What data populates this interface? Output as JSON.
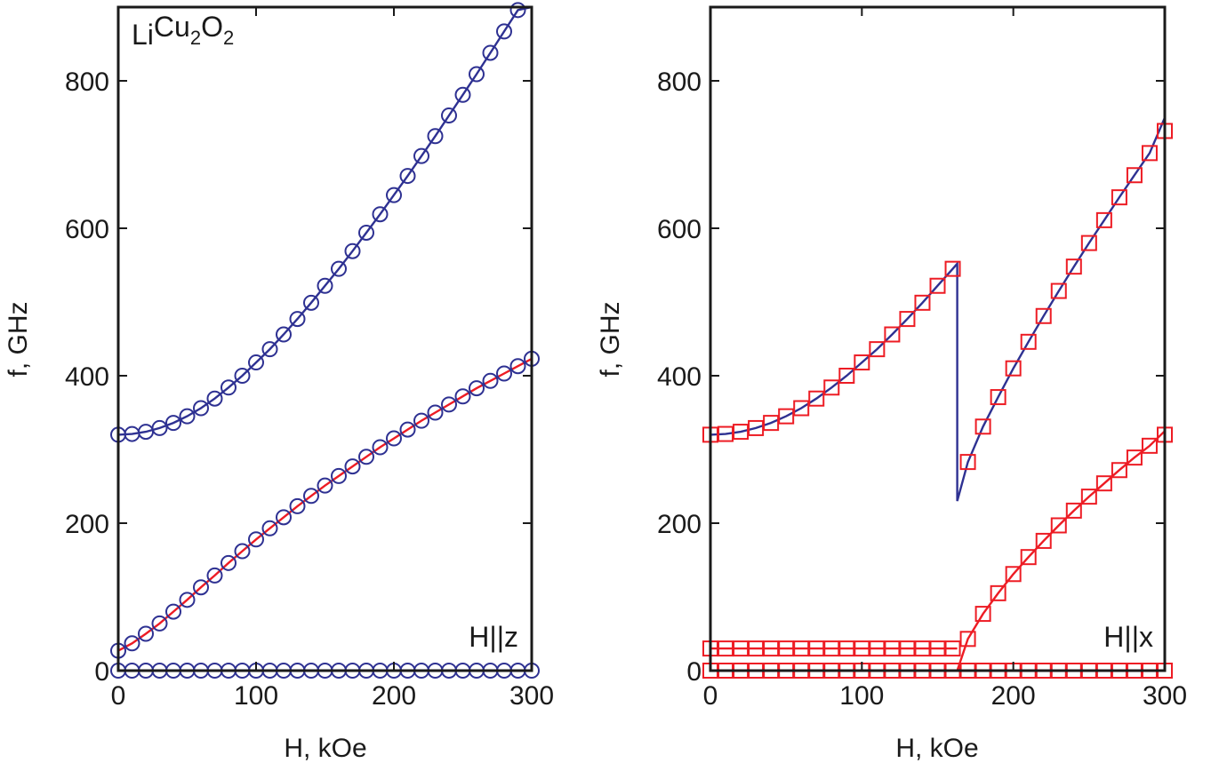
{
  "chart_data": [
    {
      "type": "scatter",
      "title": "",
      "xlabel": "H, kOe",
      "ylabel": "f, GHz",
      "xlim": [
        0,
        300
      ],
      "ylim": [
        0,
        900
      ],
      "xticks": [
        0,
        100,
        200,
        300
      ],
      "yticks": [
        0,
        200,
        400,
        600,
        800
      ],
      "grid": false,
      "legend": "none",
      "annotations": [
        {
          "text": "LiCu2O2",
          "position": "top-left",
          "parts": [
            [
              "Li",
              ""
            ],
            [
              "Cu",
              ""
            ],
            [
              "2",
              "sub"
            ],
            [
              "O",
              ""
            ],
            [
              "2",
              "sub"
            ]
          ]
        },
        {
          "text": "H||z",
          "position": "bottom-right"
        }
      ],
      "series": [
        {
          "marker": "circle",
          "color": "#2e3192",
          "x": [
            0,
            10,
            20,
            30,
            40,
            50,
            60,
            70,
            80,
            90,
            100,
            110,
            120,
            130,
            140,
            150,
            160,
            170,
            180,
            190,
            200,
            210,
            220,
            230,
            240,
            250,
            260,
            270,
            280,
            290,
            300
          ],
          "y": [
            320,
            321,
            324,
            329,
            336,
            345,
            356,
            369,
            384,
            400,
            418,
            436,
            456,
            477,
            499,
            522,
            545,
            569,
            594,
            619,
            645,
            671,
            698,
            725,
            753,
            781,
            809,
            838,
            867,
            896,
            925
          ]
        },
        {
          "marker": "circle",
          "color": "#2e3192",
          "x": [
            0,
            10,
            20,
            30,
            40,
            50,
            60,
            70,
            80,
            90,
            100,
            110,
            120,
            130,
            140,
            150,
            160,
            170,
            180,
            190,
            200,
            210,
            220,
            230,
            240,
            250,
            260,
            270,
            280,
            290,
            300
          ],
          "y": [
            27,
            37,
            50,
            64,
            80,
            96,
            113,
            129,
            146,
            162,
            178,
            193,
            208,
            223,
            237,
            251,
            264,
            277,
            290,
            303,
            315,
            327,
            339,
            350,
            361,
            372,
            383,
            393,
            403,
            413,
            423
          ]
        },
        {
          "marker": "circle",
          "color": "#2e3192",
          "x": [
            0,
            10,
            20,
            30,
            40,
            50,
            60,
            70,
            80,
            90,
            100,
            110,
            120,
            130,
            140,
            150,
            160,
            170,
            180,
            190,
            200,
            210,
            220,
            230,
            240,
            250,
            260,
            270,
            280,
            290,
            300
          ],
          "y": [
            0,
            0,
            0,
            0,
            0,
            0,
            0,
            0,
            0,
            0,
            0,
            0,
            0,
            0,
            0,
            0,
            0,
            0,
            0,
            0,
            0,
            0,
            0,
            0,
            0,
            0,
            0,
            0,
            0,
            0,
            0
          ]
        },
        {
          "marker": "line",
          "color": "#2e3192",
          "x": [
            0,
            10,
            20,
            30,
            40,
            50,
            60,
            70,
            80,
            90,
            100,
            110,
            120,
            130,
            140,
            150,
            160,
            170,
            180,
            190,
            200,
            210,
            220,
            230,
            240,
            250,
            260,
            270,
            280,
            290,
            300
          ],
          "y": [
            320,
            321,
            324,
            329,
            336,
            345,
            356,
            369,
            384,
            400,
            418,
            436,
            456,
            477,
            499,
            522,
            545,
            569,
            594,
            619,
            645,
            671,
            698,
            725,
            753,
            781,
            809,
            838,
            867,
            896,
            925
          ]
        },
        {
          "marker": "line",
          "color": "#ed1c24",
          "x": [
            0,
            10,
            20,
            30,
            40,
            50,
            60,
            70,
            80,
            90,
            100,
            110,
            120,
            130,
            140,
            150,
            160,
            170,
            180,
            190,
            200,
            210,
            220,
            230,
            240,
            250,
            260,
            270,
            280,
            290,
            300
          ],
          "y": [
            27,
            37,
            50,
            64,
            80,
            96,
            113,
            129,
            146,
            162,
            178,
            193,
            208,
            223,
            237,
            251,
            264,
            277,
            290,
            303,
            315,
            327,
            339,
            350,
            361,
            372,
            383,
            393,
            403,
            413,
            423
          ]
        }
      ]
    },
    {
      "type": "scatter",
      "title": "",
      "xlabel": "H, kOe",
      "ylabel": "f, GHz",
      "xlim": [
        0,
        300
      ],
      "ylim": [
        0,
        900
      ],
      "xticks": [
        0,
        100,
        200,
        300
      ],
      "yticks": [
        0,
        200,
        400,
        600,
        800
      ],
      "grid": false,
      "legend": "none",
      "annotations": [
        {
          "text": "H||x",
          "position": "bottom-right"
        }
      ],
      "series": [
        {
          "marker": "square",
          "color": "#ed1c24",
          "x": [
            0,
            10,
            20,
            30,
            40,
            50,
            60,
            70,
            80,
            90,
            100,
            110,
            120,
            130,
            140,
            150,
            160
          ],
          "y": [
            320,
            321,
            324,
            329,
            336,
            345,
            356,
            369,
            384,
            400,
            418,
            436,
            456,
            477,
            499,
            522,
            545
          ]
        },
        {
          "marker": "square",
          "color": "#ed1c24",
          "x": [
            170,
            180,
            190,
            200,
            210,
            220,
            230,
            240,
            250,
            260,
            270,
            280,
            290,
            300
          ],
          "y": [
            283,
            331,
            371,
            410,
            446,
            481,
            515,
            548,
            580,
            611,
            642,
            672,
            702,
            732
          ]
        },
        {
          "marker": "square",
          "color": "#ed1c24",
          "x": [
            0,
            10,
            20,
            30,
            40,
            50,
            60,
            70,
            80,
            90,
            100,
            110,
            120,
            130,
            140,
            150,
            160
          ],
          "y": [
            30,
            30,
            30,
            30,
            30,
            30,
            30,
            30,
            30,
            30,
            30,
            30,
            30,
            30,
            30,
            30,
            30
          ]
        },
        {
          "marker": "square",
          "color": "#ed1c24",
          "x": [
            0,
            10,
            20,
            30,
            40,
            50,
            60,
            70,
            80,
            90,
            100,
            110,
            120,
            130,
            140,
            150,
            160,
            170,
            180,
            190,
            200,
            210,
            220,
            230,
            240,
            250,
            260,
            270,
            280,
            290,
            300
          ],
          "y": [
            0,
            0,
            0,
            0,
            0,
            0,
            0,
            0,
            0,
            0,
            0,
            0,
            0,
            0,
            0,
            0,
            0,
            0,
            0,
            0,
            0,
            0,
            0,
            0,
            0,
            0,
            0,
            0,
            0,
            0,
            0
          ]
        },
        {
          "marker": "square",
          "color": "#ed1c24",
          "x": [
            170,
            180,
            190,
            200,
            210,
            220,
            230,
            240,
            250,
            260,
            270,
            280,
            290,
            300
          ],
          "y": [
            43,
            77,
            105,
            131,
            154,
            176,
            197,
            217,
            236,
            254,
            272,
            289,
            305,
            320
          ]
        },
        {
          "marker": "line",
          "color": "#2e3192",
          "x": [
            0,
            10,
            20,
            30,
            40,
            50,
            60,
            70,
            80,
            90,
            100,
            110,
            120,
            130,
            140,
            150,
            160,
            163,
            163,
            170,
            180,
            190,
            200,
            210,
            220,
            230,
            240,
            250,
            260,
            270,
            280,
            290,
            300
          ],
          "y": [
            320,
            321,
            324,
            329,
            336,
            345,
            356,
            369,
            384,
            400,
            418,
            436,
            456,
            477,
            499,
            522,
            545,
            552,
            230,
            283,
            331,
            371,
            410,
            446,
            481,
            515,
            548,
            580,
            611,
            642,
            672,
            702,
            750
          ]
        },
        {
          "marker": "line",
          "color": "#ed1c24",
          "x": [
            0,
            10,
            20,
            30,
            40,
            50,
            60,
            70,
            80,
            90,
            100,
            110,
            120,
            130,
            140,
            150,
            160,
            163
          ],
          "y": [
            30,
            30,
            30,
            30,
            30,
            30,
            30,
            30,
            30,
            30,
            30,
            30,
            30,
            30,
            30,
            30,
            30,
            30
          ]
        },
        {
          "marker": "line",
          "color": "#ed1c24",
          "x": [
            0,
            50,
            100,
            150,
            163,
            170,
            180,
            190,
            200,
            210,
            220,
            230,
            240,
            250,
            260,
            270,
            280,
            290,
            300
          ],
          "y": [
            0,
            0,
            0,
            0,
            0,
            43,
            77,
            105,
            131,
            154,
            176,
            197,
            217,
            236,
            254,
            272,
            289,
            305,
            325
          ]
        }
      ]
    }
  ]
}
